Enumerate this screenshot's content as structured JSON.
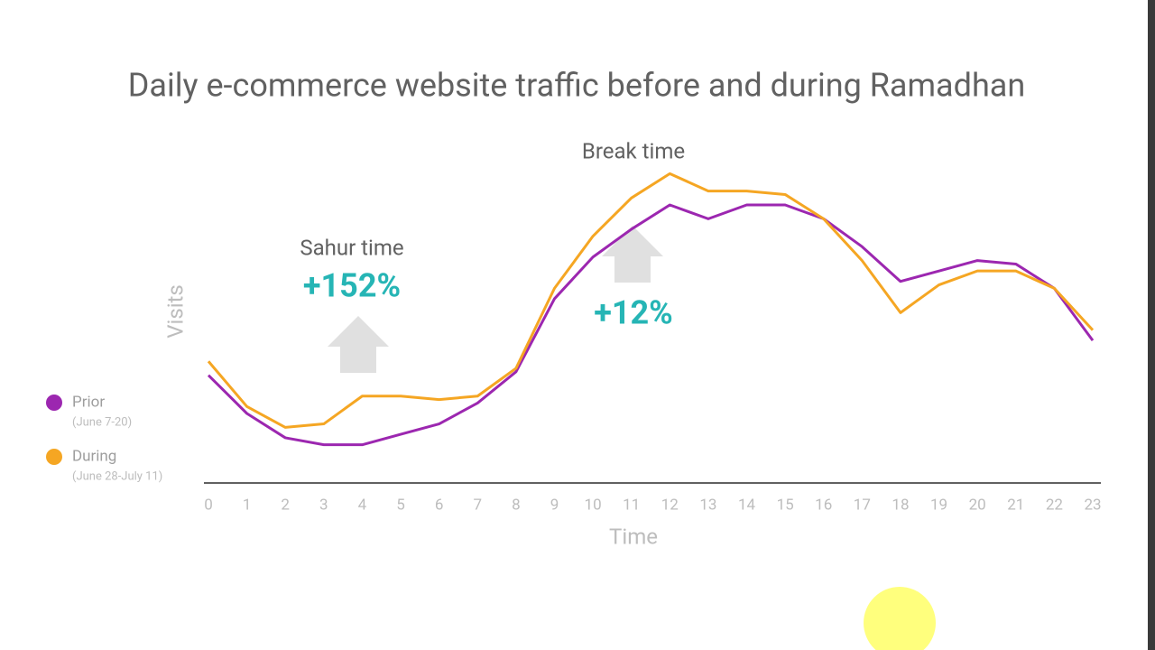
{
  "chart_data": {
    "type": "line",
    "title": "Daily e-commerce website traffic before and during Ramadhan",
    "x_label": "Time",
    "y_label": "Visits",
    "categories": [
      "0",
      "1",
      "2",
      "3",
      "4",
      "5",
      "6",
      "7",
      "8",
      "9",
      "10",
      "11",
      "12",
      "13",
      "14",
      "15",
      "16",
      "17",
      "18",
      "19",
      "20",
      "21",
      "22",
      "23"
    ],
    "ylim": [
      0,
      100
    ],
    "series": [
      {
        "name": "Prior",
        "note": "(June 7-20)",
        "color": "#9c27b0",
        "values": [
          31,
          20,
          13,
          11,
          11,
          14,
          17,
          23,
          32,
          53,
          65,
          73,
          80,
          76,
          80,
          80,
          76,
          68,
          58,
          61,
          64,
          63,
          56,
          41
        ]
      },
      {
        "name": "During",
        "note": "(June 28-July 11)",
        "color": "#f5a623",
        "values": [
          35,
          22,
          16,
          17,
          25,
          25,
          24,
          25,
          33,
          56,
          71,
          82,
          89,
          84,
          84,
          83,
          76,
          64,
          49,
          57,
          61,
          61,
          56,
          44
        ]
      }
    ],
    "annotations": [
      {
        "label": "Sahur time",
        "change": "+152%"
      },
      {
        "label": "Break time",
        "change": "+12%"
      }
    ]
  }
}
